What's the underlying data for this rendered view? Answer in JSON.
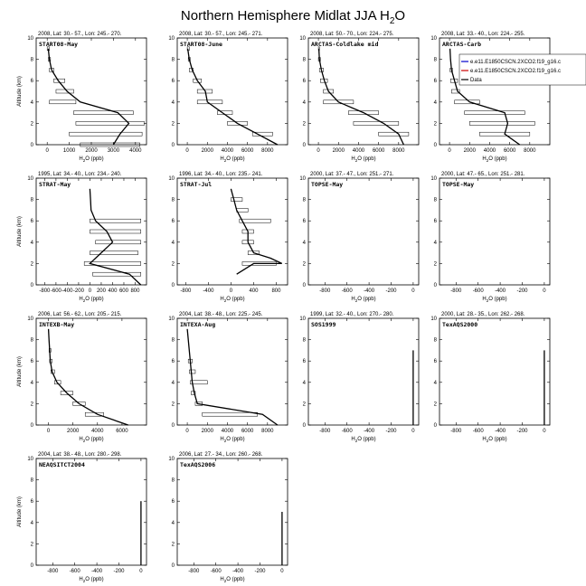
{
  "figure": {
    "title_main": "Northern Hemisphere Midlat JJA H",
    "title_sub": "2",
    "title_tail": "O",
    "ylabel": "Altitude (km)",
    "xlabel_main": "H",
    "xlabel_sub": "2",
    "xlabel_tail": "O (ppb)"
  },
  "legend": {
    "entries": [
      {
        "label": "e.e11.E1850CSCN.2XCO2.f19_g16.c",
        "color": "#0000cc"
      },
      {
        "label": "e.e11.E1850CSCN.2XCO2.f19_g16.c",
        "color": "#cc0000"
      },
      {
        "label": "Data",
        "color": "#000000"
      }
    ]
  },
  "chart_data": [
    {
      "type": "line",
      "header": "2008, Lat: 30.- 57., Lon: 245.- 270.",
      "name": "START08-May",
      "xticks": [
        "0",
        "1000",
        "2000",
        "3000",
        "4000"
      ],
      "xlim": [
        -500,
        4500
      ],
      "ylim": [
        0,
        10
      ],
      "yticks": [
        "0",
        "2",
        "4",
        "6",
        "8",
        "10"
      ],
      "profile": [
        [
          3000,
          0
        ],
        [
          3300,
          1
        ],
        [
          3700,
          2
        ],
        [
          3200,
          3
        ],
        [
          1500,
          4
        ],
        [
          900,
          5
        ],
        [
          500,
          6
        ],
        [
          200,
          7
        ],
        [
          100,
          8
        ],
        [
          50,
          9
        ]
      ],
      "bars": [
        [
          1500,
          4200,
          0
        ],
        [
          1000,
          4300,
          1
        ],
        [
          1300,
          4400,
          2
        ],
        [
          1200,
          3900,
          3
        ],
        [
          100,
          1300,
          4
        ],
        [
          400,
          1200,
          5
        ],
        [
          300,
          800,
          6
        ],
        [
          100,
          300,
          7
        ],
        [
          50,
          150,
          8
        ],
        [
          0,
          100,
          9
        ]
      ]
    },
    {
      "type": "line",
      "header": "2008, Lat: 30.- 57., Lon: 245.- 271.",
      "name": "START08-June",
      "xticks": [
        "0",
        "2000",
        "4000",
        "6000",
        "8000"
      ],
      "xlim": [
        -1000,
        10000
      ],
      "ylim": [
        0,
        10
      ],
      "yticks": [
        "0",
        "2",
        "4",
        "6",
        "8",
        "10"
      ],
      "profile": [
        [
          9000,
          0
        ],
        [
          7000,
          1
        ],
        [
          5000,
          2
        ],
        [
          3500,
          3
        ],
        [
          2000,
          4
        ],
        [
          1800,
          5
        ],
        [
          1000,
          6
        ],
        [
          500,
          7
        ],
        [
          200,
          8
        ],
        [
          50,
          9
        ]
      ],
      "bars": [
        [
          6500,
          8500,
          1
        ],
        [
          4000,
          6000,
          2
        ],
        [
          3000,
          4500,
          3
        ],
        [
          1000,
          3500,
          4
        ],
        [
          1000,
          2500,
          5
        ],
        [
          600,
          1400,
          6
        ],
        [
          200,
          600,
          7
        ],
        [
          100,
          300,
          8
        ],
        [
          0,
          200,
          9
        ]
      ]
    },
    {
      "type": "line",
      "header": "2008, Lat: 50.- 70., Lon: 224.- 275.",
      "name": "ARCTAS-Coldlake mid",
      "xticks": [
        "0",
        "2000",
        "4000",
        "6000",
        "8000"
      ],
      "xlim": [
        -1000,
        10000
      ],
      "ylim": [
        0,
        10
      ],
      "yticks": [
        "0",
        "2",
        "4",
        "6",
        "8",
        "10"
      ],
      "profile": [
        [
          8500,
          0
        ],
        [
          8000,
          1
        ],
        [
          6500,
          2
        ],
        [
          4500,
          3
        ],
        [
          2000,
          4
        ],
        [
          1000,
          5
        ],
        [
          600,
          6
        ],
        [
          300,
          7
        ],
        [
          100,
          8
        ],
        [
          50,
          9
        ]
      ],
      "bars": [
        [
          6000,
          9000,
          1
        ],
        [
          3500,
          8000,
          2
        ],
        [
          3000,
          6000,
          3
        ],
        [
          500,
          3500,
          4
        ],
        [
          500,
          1500,
          5
        ],
        [
          200,
          900,
          6
        ],
        [
          100,
          500,
          7
        ],
        [
          0,
          200,
          8
        ],
        [
          0,
          100,
          9
        ]
      ]
    },
    {
      "type": "line",
      "header": "2008, Lat: 33.- 40., Lon: 224.- 255.",
      "name": "ARCTAS-Carb",
      "xticks": [
        "0",
        "2000",
        "4000",
        "6000",
        "8000"
      ],
      "xlim": [
        -1000,
        10000
      ],
      "ylim": [
        0,
        10
      ],
      "yticks": [
        "0",
        "2",
        "4",
        "6",
        "8",
        "10"
      ],
      "profile": [
        [
          7000,
          0
        ],
        [
          5500,
          1
        ],
        [
          5800,
          2
        ],
        [
          5500,
          3
        ],
        [
          2000,
          4
        ],
        [
          800,
          5
        ],
        [
          500,
          6
        ],
        [
          200,
          7
        ],
        [
          100,
          8
        ],
        [
          50,
          9
        ]
      ],
      "bars": [
        [
          3000,
          8000,
          1
        ],
        [
          2000,
          8500,
          2
        ],
        [
          1500,
          7500,
          3
        ],
        [
          500,
          3000,
          4
        ],
        [
          200,
          1000,
          5
        ],
        [
          100,
          800,
          6
        ],
        [
          50,
          300,
          7
        ]
      ]
    },
    {
      "type": "line",
      "header": "1995, Lat: 34.- 40., Lon: 234.- 240.",
      "name": "STRAT-May",
      "xticks": [
        "-800",
        "-600",
        "-400",
        "-200",
        "0",
        "200",
        "400",
        "600",
        "800"
      ],
      "xlim": [
        -950,
        1000
      ],
      "ylim": [
        0,
        10
      ],
      "yticks": [
        "0",
        "2",
        "4",
        "6",
        "8",
        "10"
      ],
      "profile": [
        [
          900,
          0
        ],
        [
          700,
          1
        ],
        [
          0,
          2
        ],
        [
          200,
          3
        ],
        [
          400,
          4
        ],
        [
          300,
          5
        ],
        [
          100,
          6
        ],
        [
          20,
          7
        ],
        [
          10,
          8
        ],
        [
          0,
          9
        ]
      ],
      "bars": [
        [
          50,
          900,
          1
        ],
        [
          -100,
          900,
          2
        ],
        [
          0,
          850,
          3
        ],
        [
          100,
          900,
          4
        ],
        [
          0,
          900,
          5
        ],
        [
          0,
          900,
          6
        ]
      ]
    },
    {
      "type": "line",
      "header": "1996, Lat: 34.- 40., Lon: 235.- 241.",
      "name": "STRAT-Jul",
      "xticks": [
        "-800",
        "-400",
        "0",
        "400",
        "800"
      ],
      "xlim": [
        -950,
        1000
      ],
      "ylim": [
        0,
        10
      ],
      "yticks": [
        "0",
        "2",
        "4",
        "6",
        "8",
        "10"
      ],
      "profile": [
        [
          100,
          1
        ],
        [
          400,
          2
        ],
        [
          900,
          2
        ],
        [
          700,
          2.5
        ],
        [
          400,
          3
        ],
        [
          300,
          4
        ],
        [
          300,
          5
        ],
        [
          200,
          6
        ],
        [
          100,
          7
        ],
        [
          50,
          8
        ],
        [
          0,
          9
        ]
      ],
      "bars": [
        [
          200,
          800,
          2
        ],
        [
          300,
          500,
          3
        ],
        [
          200,
          400,
          4
        ],
        [
          200,
          400,
          5
        ],
        [
          150,
          700,
          6
        ],
        [
          100,
          300,
          7
        ],
        [
          0,
          200,
          8
        ]
      ]
    },
    {
      "type": "line",
      "header": "2000, Lat: 37.- 47., Lon: 251.- 271.",
      "name": "TOPSE-May",
      "xticks": [
        "-800",
        "-600",
        "-400",
        "-200",
        "0"
      ],
      "xlim": [
        -950,
        50
      ],
      "ylim": [
        0,
        10
      ],
      "yticks": [
        "0",
        "2",
        "4",
        "6",
        "8",
        "10"
      ],
      "profile": [],
      "bars": []
    },
    {
      "type": "line",
      "header": "2000, Lat: 47.- 65., Lon: 251.- 281.",
      "name": "TOPSE-May",
      "xticks": [
        "-800",
        "-600",
        "-400",
        "-200",
        "0"
      ],
      "xlim": [
        -950,
        50
      ],
      "ylim": [
        0,
        10
      ],
      "yticks": [
        "0",
        "2",
        "4",
        "6",
        "8",
        "10"
      ],
      "profile": [],
      "bars": []
    },
    {
      "type": "line",
      "header": "2006, Lat: 56.- 62., Lon: 205.- 215.",
      "name": "INTEXB-May",
      "xticks": [
        "0",
        "2000",
        "4000",
        "6000"
      ],
      "xlim": [
        -1000,
        8000
      ],
      "ylim": [
        0,
        10
      ],
      "yticks": [
        "0",
        "2",
        "4",
        "6",
        "8",
        "10"
      ],
      "profile": [
        [
          6500,
          0
        ],
        [
          4000,
          1
        ],
        [
          2500,
          2
        ],
        [
          1500,
          3
        ],
        [
          700,
          4
        ],
        [
          300,
          5
        ],
        [
          150,
          6
        ],
        [
          100,
          7
        ],
        [
          50,
          8
        ],
        [
          0,
          9
        ]
      ],
      "bars": [
        [
          3000,
          4500,
          1
        ],
        [
          2000,
          3000,
          2
        ],
        [
          1000,
          2000,
          3
        ],
        [
          500,
          1000,
          4
        ],
        [
          200,
          500,
          5
        ],
        [
          100,
          300,
          6
        ],
        [
          50,
          200,
          7
        ]
      ]
    },
    {
      "type": "line",
      "header": "2004, Lat: 38.- 48., Lon: 225.- 245.",
      "name": "INTEXA-Aug",
      "xticks": [
        "0",
        "2000",
        "4000",
        "6000",
        "8000"
      ],
      "xlim": [
        -1000,
        10000
      ],
      "ylim": [
        0,
        10
      ],
      "yticks": [
        "0",
        "2",
        "4",
        "6",
        "8",
        "10"
      ],
      "profile": [
        [
          9000,
          0
        ],
        [
          7500,
          1
        ],
        [
          1000,
          2
        ],
        [
          700,
          3
        ],
        [
          500,
          4
        ],
        [
          400,
          5
        ],
        [
          300,
          6
        ],
        [
          200,
          7
        ],
        [
          100,
          8
        ],
        [
          0,
          9
        ]
      ],
      "bars": [
        [
          1500,
          7000,
          1
        ],
        [
          800,
          1500,
          2
        ],
        [
          400,
          800,
          3
        ],
        [
          300,
          2000,
          4
        ],
        [
          200,
          800,
          5
        ],
        [
          100,
          500,
          6
        ]
      ]
    },
    {
      "type": "line",
      "header": "1999, Lat: 32.- 40., Lon: 270.- 280.",
      "name": "SOS1999",
      "xticks": [
        "-800",
        "-600",
        "-400",
        "-200",
        "0"
      ],
      "xlim": [
        -950,
        50
      ],
      "ylim": [
        0,
        10
      ],
      "yticks": [
        "0",
        "2",
        "4",
        "6",
        "8",
        "10"
      ],
      "profile": [
        [
          0,
          0
        ],
        [
          0,
          7
        ]
      ],
      "bars": []
    },
    {
      "type": "line",
      "header": "2000, Lat: 28.- 35., Lon: 262.- 268.",
      "name": "TexAQS2000",
      "xticks": [
        "-800",
        "-600",
        "-400",
        "-200",
        "0"
      ],
      "xlim": [
        -950,
        50
      ],
      "ylim": [
        0,
        10
      ],
      "yticks": [
        "0",
        "2",
        "4",
        "6",
        "8",
        "10"
      ],
      "profile": [
        [
          0,
          0
        ],
        [
          0,
          7
        ]
      ],
      "bars": []
    },
    {
      "type": "line",
      "header": "2004, Lat: 38.- 48., Lon: 280.- 298.",
      "name": "NEAQSITCT2004",
      "xticks": [
        "-800",
        "-600",
        "-400",
        "-200",
        "0"
      ],
      "xlim": [
        -950,
        50
      ],
      "ylim": [
        0,
        10
      ],
      "yticks": [
        "0",
        "2",
        "4",
        "6",
        "8",
        "10"
      ],
      "profile": [
        [
          0,
          0
        ],
        [
          0,
          6
        ]
      ],
      "bars": []
    },
    {
      "type": "line",
      "header": "2006, Lat: 27.- 34., Lon: 260.- 268.",
      "name": "TexAQS2006",
      "xticks": [
        "-800",
        "-600",
        "-400",
        "-200",
        "0"
      ],
      "xlim": [
        -950,
        50
      ],
      "ylim": [
        0,
        10
      ],
      "yticks": [
        "0",
        "2",
        "4",
        "6",
        "8",
        "10"
      ],
      "profile": [
        [
          0,
          0
        ],
        [
          0,
          5
        ]
      ],
      "bars": []
    }
  ]
}
